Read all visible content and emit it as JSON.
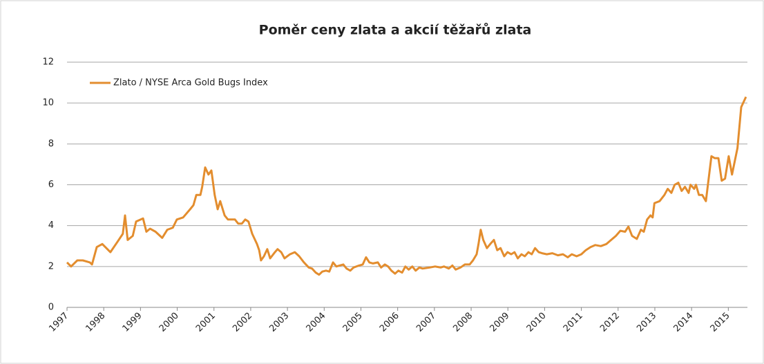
{
  "chart_data": {
    "type": "line",
    "title": "Poměr ceny zlata a akcií těžařů zlata",
    "legend": "top-left",
    "grid": true,
    "xlim": [
      1997,
      2015.52
    ],
    "xticks": [
      1997,
      1998,
      1999,
      2000,
      2001,
      2002,
      2003,
      2004,
      2005,
      2006,
      2007,
      2008,
      2009,
      2010,
      2011,
      2012,
      2013,
      2014,
      2015
    ],
    "ylim": [
      0,
      12
    ],
    "yticks": [
      0,
      2,
      4,
      6,
      8,
      10,
      12
    ],
    "x": [
      1997.0,
      1997.11,
      1997.28,
      1997.43,
      1997.62,
      1997.68,
      1997.81,
      1997.96,
      1998.18,
      1998.37,
      1998.52,
      1998.58,
      1998.65,
      1998.79,
      1998.88,
      1999.07,
      1999.16,
      1999.26,
      1999.41,
      1999.59,
      1999.73,
      1999.88,
      1999.99,
      2000.16,
      2000.35,
      2000.44,
      2000.52,
      2000.63,
      2000.68,
      2000.76,
      2000.85,
      2000.93,
      2001.02,
      2001.1,
      2001.17,
      2001.29,
      2001.38,
      2001.57,
      2001.66,
      2001.76,
      2001.85,
      2001.94,
      2002.04,
      2002.17,
      2002.23,
      2002.28,
      2002.36,
      2002.45,
      2002.53,
      2002.66,
      2002.73,
      2002.83,
      2002.92,
      2003.07,
      2003.2,
      2003.32,
      2003.45,
      2003.58,
      2003.67,
      2003.77,
      2003.86,
      2003.95,
      2004.05,
      2004.14,
      2004.24,
      2004.33,
      2004.42,
      2004.52,
      2004.61,
      2004.71,
      2004.8,
      2004.95,
      2005.05,
      2005.14,
      2005.23,
      2005.33,
      2005.46,
      2005.55,
      2005.65,
      2005.74,
      2005.83,
      2005.93,
      2006.02,
      2006.12,
      2006.21,
      2006.3,
      2006.4,
      2006.49,
      2006.59,
      2006.68,
      2006.87,
      2007.02,
      2007.17,
      2007.26,
      2007.39,
      2007.49,
      2007.58,
      2007.71,
      2007.83,
      2007.96,
      2008.05,
      2008.15,
      2008.2,
      2008.26,
      2008.33,
      2008.43,
      2008.52,
      2008.62,
      2008.71,
      2008.8,
      2008.9,
      2008.99,
      2009.09,
      2009.18,
      2009.27,
      2009.37,
      2009.46,
      2009.56,
      2009.65,
      2009.74,
      2009.84,
      2009.93,
      2010.06,
      2010.21,
      2010.36,
      2010.5,
      2010.63,
      2010.74,
      2010.87,
      2011.0,
      2011.12,
      2011.25,
      2011.38,
      2011.53,
      2011.68,
      2011.81,
      2011.94,
      2012.06,
      2012.19,
      2012.28,
      2012.38,
      2012.51,
      2012.62,
      2012.7,
      2012.79,
      2012.88,
      2012.94,
      2012.99,
      2013.13,
      2013.26,
      2013.35,
      2013.45,
      2013.54,
      2013.64,
      2013.73,
      2013.82,
      2013.92,
      2013.97,
      2014.07,
      2014.12,
      2014.2,
      2014.29,
      2014.39,
      2014.54,
      2014.63,
      2014.73,
      2014.82,
      2014.91,
      2015.01,
      2015.1,
      2015.25,
      2015.35,
      2015.48
    ],
    "series": [
      {
        "name": "Zlato / NYSE Arca Gold Bugs Index",
        "color": "#e38d2e",
        "values": [
          2.2,
          2.0,
          2.3,
          2.3,
          2.2,
          2.1,
          2.95,
          3.1,
          2.7,
          3.2,
          3.6,
          4.5,
          3.3,
          3.5,
          4.2,
          4.35,
          3.7,
          3.85,
          3.7,
          3.4,
          3.8,
          3.9,
          4.3,
          4.4,
          4.8,
          5.0,
          5.5,
          5.5,
          5.9,
          6.85,
          6.5,
          6.7,
          5.5,
          4.8,
          5.2,
          4.5,
          4.3,
          4.3,
          4.1,
          4.1,
          4.3,
          4.2,
          3.6,
          3.1,
          2.8,
          2.3,
          2.5,
          2.85,
          2.4,
          2.7,
          2.85,
          2.7,
          2.4,
          2.6,
          2.7,
          2.5,
          2.2,
          1.95,
          1.9,
          1.7,
          1.6,
          1.75,
          1.8,
          1.75,
          2.2,
          2.0,
          2.05,
          2.1,
          1.9,
          1.8,
          1.95,
          2.05,
          2.1,
          2.45,
          2.2,
          2.15,
          2.2,
          1.95,
          2.1,
          2.0,
          1.8,
          1.65,
          1.8,
          1.7,
          2.0,
          1.85,
          2.0,
          1.8,
          1.95,
          1.9,
          1.95,
          2.0,
          1.95,
          2.0,
          1.9,
          2.05,
          1.85,
          1.95,
          2.1,
          2.1,
          2.3,
          2.6,
          3.1,
          3.8,
          3.3,
          2.9,
          3.1,
          3.3,
          2.8,
          2.9,
          2.5,
          2.7,
          2.6,
          2.7,
          2.4,
          2.6,
          2.5,
          2.7,
          2.6,
          2.9,
          2.7,
          2.65,
          2.6,
          2.65,
          2.55,
          2.6,
          2.45,
          2.6,
          2.5,
          2.6,
          2.8,
          2.95,
          3.05,
          3.0,
          3.1,
          3.3,
          3.5,
          3.75,
          3.7,
          3.95,
          3.5,
          3.35,
          3.8,
          3.7,
          4.3,
          4.5,
          4.4,
          5.1,
          5.2,
          5.5,
          5.8,
          5.6,
          6.0,
          6.1,
          5.7,
          5.9,
          5.6,
          6.0,
          5.8,
          6.0,
          5.5,
          5.5,
          5.2,
          7.4,
          7.3,
          7.3,
          6.2,
          6.3,
          7.4,
          6.5,
          7.8,
          9.8,
          10.3
        ]
      }
    ]
  }
}
